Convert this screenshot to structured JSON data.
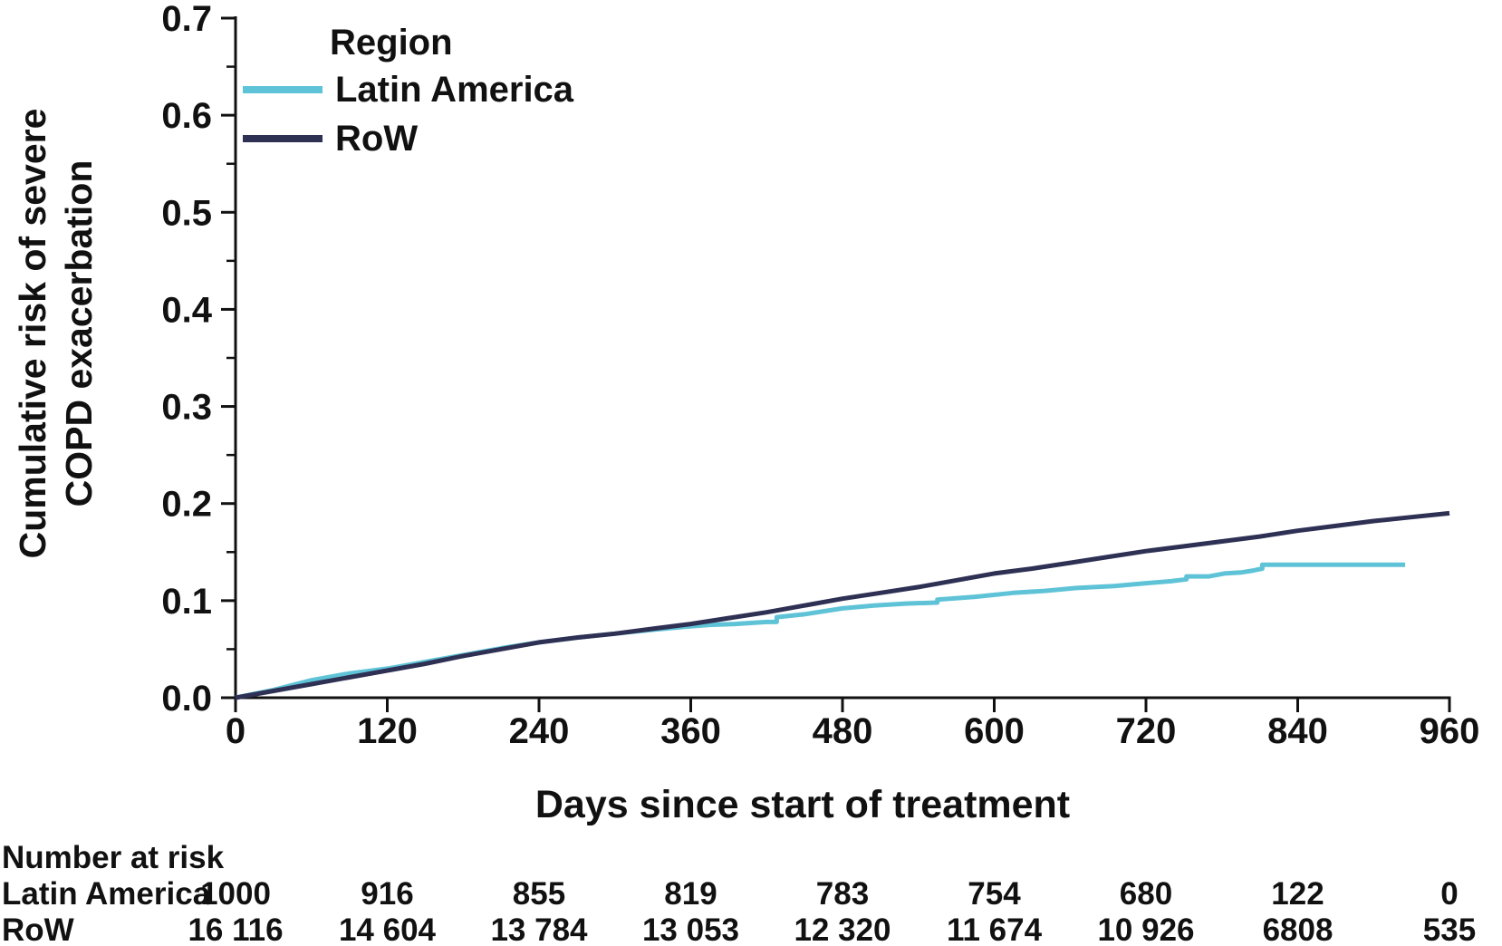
{
  "figure": {
    "background": "#ffffff",
    "axis_color": "#111111"
  },
  "chart_data": {
    "type": "line",
    "subtype": "cumulative-incidence-kaplan-meier",
    "title": "",
    "xlabel": "Days since start of treatment",
    "ylabel_lines": [
      "Cumulative risk of severe",
      "COPD exacerbation"
    ],
    "xlim": [
      0,
      960
    ],
    "ylim": [
      0,
      0.7
    ],
    "xticks": [
      "0",
      "120",
      "240",
      "360",
      "480",
      "600",
      "720",
      "840",
      "960"
    ],
    "yticks": [
      "0.0",
      "0.1",
      "0.2",
      "0.3",
      "0.4",
      "0.5",
      "0.6",
      "0.7"
    ],
    "y_minor_tick_step": 0.05,
    "grid": false,
    "legend_title": "Region",
    "legend_position": "top-left",
    "series": [
      {
        "name": "Latin America",
        "color": "#5fc3d7",
        "points": [
          [
            0,
            0
          ],
          [
            30,
            0.008
          ],
          [
            60,
            0.018
          ],
          [
            90,
            0.025
          ],
          [
            120,
            0.03
          ],
          [
            150,
            0.037
          ],
          [
            180,
            0.044
          ],
          [
            210,
            0.051
          ],
          [
            240,
            0.057
          ],
          [
            270,
            0.062
          ],
          [
            300,
            0.066
          ],
          [
            330,
            0.07
          ],
          [
            355,
            0.073
          ],
          [
            375,
            0.075
          ],
          [
            395,
            0.076
          ],
          [
            420,
            0.078
          ],
          [
            428,
            0.078
          ],
          [
            428,
            0.083
          ],
          [
            450,
            0.086
          ],
          [
            465,
            0.089
          ],
          [
            480,
            0.092
          ],
          [
            505,
            0.095
          ],
          [
            530,
            0.097
          ],
          [
            555,
            0.098
          ],
          [
            555,
            0.101
          ],
          [
            585,
            0.104
          ],
          [
            615,
            0.108
          ],
          [
            640,
            0.11
          ],
          [
            665,
            0.113
          ],
          [
            695,
            0.115
          ],
          [
            720,
            0.118
          ],
          [
            740,
            0.12
          ],
          [
            752,
            0.122
          ],
          [
            752,
            0.125
          ],
          [
            770,
            0.125
          ],
          [
            782,
            0.128
          ],
          [
            795,
            0.129
          ],
          [
            805,
            0.131
          ],
          [
            812,
            0.133
          ],
          [
            812,
            0.137
          ],
          [
            925,
            0.137
          ]
        ]
      },
      {
        "name": "RoW",
        "color": "#2e3054",
        "points": [
          [
            0,
            0
          ],
          [
            30,
            0.007
          ],
          [
            60,
            0.014
          ],
          [
            90,
            0.021
          ],
          [
            120,
            0.028
          ],
          [
            150,
            0.035
          ],
          [
            180,
            0.043
          ],
          [
            210,
            0.05
          ],
          [
            240,
            0.057
          ],
          [
            270,
            0.062
          ],
          [
            300,
            0.066
          ],
          [
            330,
            0.071
          ],
          [
            360,
            0.076
          ],
          [
            390,
            0.082
          ],
          [
            420,
            0.088
          ],
          [
            450,
            0.095
          ],
          [
            480,
            0.102
          ],
          [
            510,
            0.108
          ],
          [
            540,
            0.114
          ],
          [
            570,
            0.121
          ],
          [
            600,
            0.128
          ],
          [
            630,
            0.133
          ],
          [
            660,
            0.139
          ],
          [
            690,
            0.145
          ],
          [
            720,
            0.151
          ],
          [
            750,
            0.156
          ],
          [
            780,
            0.161
          ],
          [
            810,
            0.166
          ],
          [
            840,
            0.172
          ],
          [
            870,
            0.177
          ],
          [
            900,
            0.182
          ],
          [
            930,
            0.186
          ],
          [
            960,
            0.19
          ]
        ]
      }
    ]
  },
  "risk_table": {
    "header": "Number at risk",
    "columns_days": [
      0,
      120,
      240,
      360,
      480,
      600,
      720,
      840,
      960
    ],
    "rows": [
      {
        "label": "Latin America",
        "values": [
          "1000",
          "916",
          "855",
          "819",
          "783",
          "754",
          "680",
          "122",
          "0"
        ]
      },
      {
        "label": "RoW",
        "values": [
          "16 116",
          "14 604",
          "13 784",
          "13 053",
          "12 320",
          "11 674",
          "10 926",
          "6808",
          "535"
        ]
      }
    ]
  }
}
